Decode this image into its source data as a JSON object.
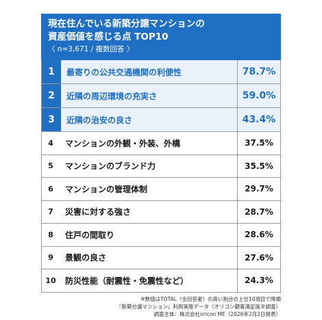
{
  "header": {
    "title_line1": "現在住んでいる新築分譲マンションの",
    "title_line2": "資産価値を感じる点 TOP10",
    "subtitle": "〈 n=3,671 / 複数回答 〉"
  },
  "rows": [
    {
      "rank": "1",
      "label": "最寄りの公共交通機関の利便性",
      "pct": "78.7%"
    },
    {
      "rank": "2",
      "label": "近隣の周辺環境の充実さ",
      "pct": "59.0%"
    },
    {
      "rank": "3",
      "label": "近隣の治安の良さ",
      "pct": "43.4%"
    },
    {
      "rank": "4",
      "label": "マンションの外観・外装、外構",
      "pct": "37.5%"
    },
    {
      "rank": "5",
      "label": "マンションのブランド力",
      "pct": "35.5%"
    },
    {
      "rank": "6",
      "label": "マンションの管理体制",
      "pct": "29.7%"
    },
    {
      "rank": "7",
      "label": "災害に対する強さ",
      "pct": "28.7%"
    },
    {
      "rank": "8",
      "label": "住戸の間取り",
      "pct": "28.6%"
    },
    {
      "rank": "9",
      "label": "景観の良さ",
      "pct": "27.6%"
    },
    {
      "rank": "10",
      "label": "防災性能（耐震性・免震性など）",
      "pct": "24.3%"
    }
  ],
  "notes": {
    "line1": "※数値はTOTAL（全回答者）の高い割合の上位10項目で降順",
    "line2": "『新築分譲マンション』利用実態データ（オリコン顧客満足度®調査）",
    "line3": "調査主体：株式会社oricon ME（2026年2月2日発表）"
  },
  "colors": {
    "accent": "#1f6fc4",
    "highlight_bg": "#e9f1fb"
  }
}
